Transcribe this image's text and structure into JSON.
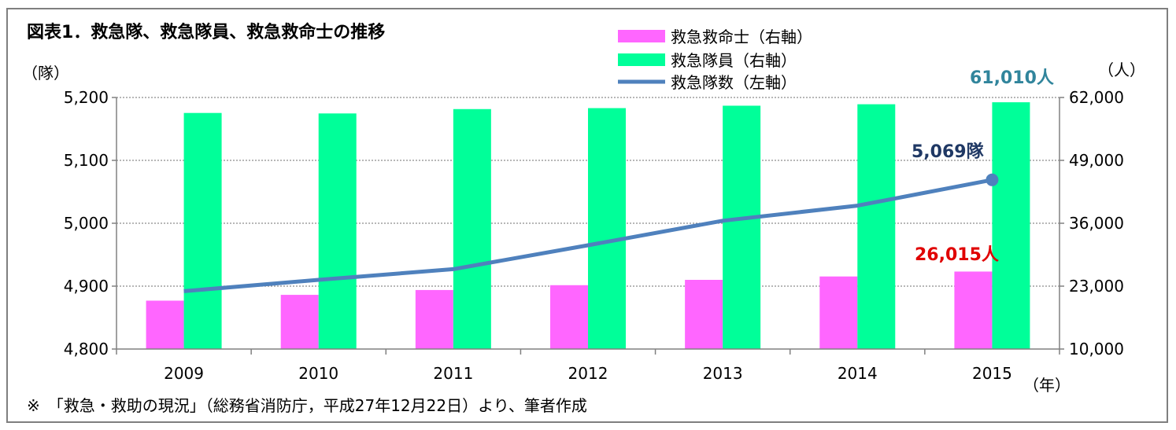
{
  "chart_data": {
    "type": "bar+line",
    "title": "図表1．救急隊、救急隊員、救急救命士の推移",
    "categories": [
      "2009",
      "2010",
      "2011",
      "2012",
      "2013",
      "2014",
      "2015"
    ],
    "xunit": "（年）",
    "left_axis": {
      "unit": "（隊）",
      "range": [
        4800,
        5200
      ],
      "ticks": [
        4800,
        4900,
        5000,
        5100,
        5200
      ],
      "tick_labels": [
        "4,800",
        "4,900",
        "5,000",
        "5,100",
        "5,200"
      ]
    },
    "right_axis": {
      "unit": "（人）",
      "range": [
        10000,
        62000
      ],
      "ticks": [
        10000,
        23000,
        36000,
        49000,
        62000
      ],
      "tick_labels": [
        "10,000",
        "23,000",
        "36,000",
        "49,000",
        "62,000"
      ]
    },
    "series": [
      {
        "name": "救急救命士（右軸）",
        "kind": "bar",
        "axis": "right",
        "color": "#ff66ff",
        "values": [
          20000,
          21200,
          22200,
          23200,
          24300,
          25000,
          26015
        ]
      },
      {
        "name": "救急隊員（右軸）",
        "kind": "bar",
        "axis": "right",
        "color": "#00ff99",
        "values": [
          58800,
          58700,
          59600,
          59800,
          60300,
          60600,
          61010
        ]
      },
      {
        "name": "救急隊数（左軸）",
        "kind": "line",
        "axis": "left",
        "color": "#4f81bd",
        "values": [
          4892,
          4910,
          4927,
          4965,
          5004,
          5028,
          5069
        ]
      }
    ],
    "annotations": [
      {
        "text": "61,010人",
        "color": "#31859c"
      },
      {
        "text": "5,069隊",
        "color": "#1f3864"
      },
      {
        "text": "26,015人",
        "color": "#e00000"
      }
    ],
    "grid": true,
    "legend_position": "top-center"
  },
  "footnote": "※　「救急・救助の現況」（総務省消防庁，平成27年12月22日）より、筆者作成"
}
